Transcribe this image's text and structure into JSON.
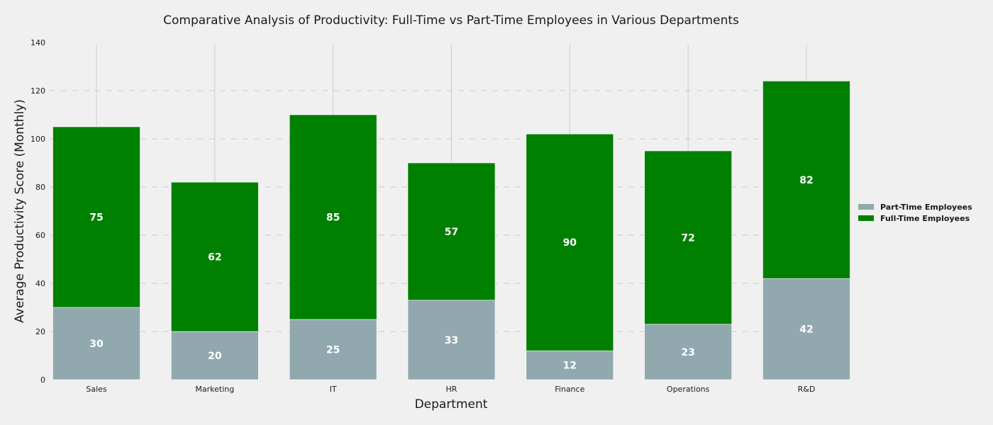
{
  "chart_data": {
    "type": "bar",
    "stacked": true,
    "title": "Comparative Analysis of Productivity: Full-Time vs Part-Time Employees in Various Departments",
    "xlabel": "Department",
    "ylabel": "Average Productivity Score (Monthly)",
    "categories": [
      "Sales",
      "Marketing",
      "IT",
      "HR",
      "Finance",
      "Operations",
      "R&D"
    ],
    "series": [
      {
        "name": "Part-Time Employees",
        "values": [
          30,
          20,
          25,
          33,
          12,
          23,
          42
        ],
        "color": "#90a8ae"
      },
      {
        "name": "Full-Time Employees",
        "values": [
          75,
          62,
          85,
          57,
          90,
          72,
          82
        ],
        "color": "#008000"
      }
    ],
    "ylim": [
      0,
      140
    ],
    "yticks": [
      0,
      20,
      40,
      60,
      80,
      100,
      120,
      140
    ],
    "grid": true,
    "legend_position": "right",
    "background": "#f0f0f0"
  }
}
